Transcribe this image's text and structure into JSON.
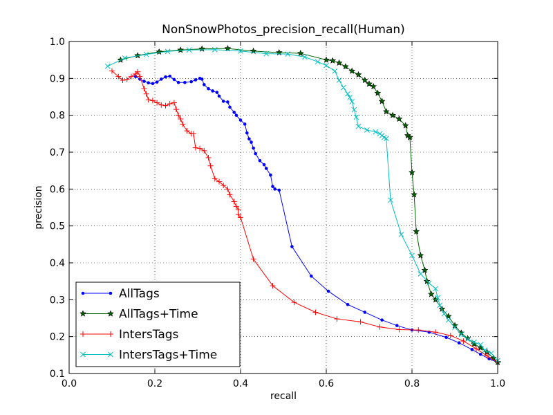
{
  "chart_data": {
    "type": "line",
    "title": "NonSnowPhotos_precision_recall(Human)",
    "xlabel": "recall",
    "ylabel": "precision",
    "xlim": [
      0.0,
      1.0
    ],
    "ylim": [
      0.1,
      1.0
    ],
    "xticks": [
      "0.0",
      "0.2",
      "0.4",
      "0.6",
      "0.8",
      "1.0"
    ],
    "yticks": [
      "0.1",
      "0.2",
      "0.3",
      "0.4",
      "0.5",
      "0.6",
      "0.7",
      "0.8",
      "0.9",
      "1.0"
    ],
    "grid": true,
    "legend_position": "lower-left",
    "series": [
      {
        "name": "AllTags",
        "color": "#0000ff",
        "marker": "dot",
        "points": [
          [
            0.155,
            0.905
          ],
          [
            0.165,
            0.898
          ],
          [
            0.175,
            0.892
          ],
          [
            0.185,
            0.888
          ],
          [
            0.195,
            0.886
          ],
          [
            0.205,
            0.89
          ],
          [
            0.215,
            0.898
          ],
          [
            0.225,
            0.904
          ],
          [
            0.235,
            0.906
          ],
          [
            0.245,
            0.897
          ],
          [
            0.255,
            0.889
          ],
          [
            0.27,
            0.889
          ],
          [
            0.285,
            0.891
          ],
          [
            0.295,
            0.896
          ],
          [
            0.305,
            0.9
          ],
          [
            0.31,
            0.898
          ],
          [
            0.315,
            0.883
          ],
          [
            0.325,
            0.872
          ],
          [
            0.335,
            0.866
          ],
          [
            0.345,
            0.862
          ],
          [
            0.35,
            0.852
          ],
          [
            0.36,
            0.838
          ],
          [
            0.37,
            0.836
          ],
          [
            0.375,
            0.822
          ],
          [
            0.385,
            0.808
          ],
          [
            0.39,
            0.8
          ],
          [
            0.4,
            0.787
          ],
          [
            0.41,
            0.776
          ],
          [
            0.415,
            0.752
          ],
          [
            0.42,
            0.736
          ],
          [
            0.425,
            0.727
          ],
          [
            0.43,
            0.711
          ],
          [
            0.435,
            0.696
          ],
          [
            0.445,
            0.677
          ],
          [
            0.455,
            0.666
          ],
          [
            0.46,
            0.656
          ],
          [
            0.47,
            0.638
          ],
          [
            0.475,
            0.607
          ],
          [
            0.48,
            0.6
          ],
          [
            0.49,
            0.597
          ],
          [
            0.52,
            0.444
          ],
          [
            0.565,
            0.364
          ],
          [
            0.605,
            0.323
          ],
          [
            0.65,
            0.287
          ],
          [
            0.69,
            0.266
          ],
          [
            0.73,
            0.245
          ],
          [
            0.765,
            0.23
          ],
          [
            0.8,
            0.218
          ],
          [
            0.84,
            0.212
          ],
          [
            0.88,
            0.198
          ],
          [
            0.91,
            0.183
          ],
          [
            0.94,
            0.165
          ],
          [
            0.96,
            0.152
          ],
          [
            0.98,
            0.14
          ],
          [
            1.0,
            0.13
          ]
        ]
      },
      {
        "name": "AllTags+Time",
        "color": "#006400",
        "marker": "star",
        "points": [
          [
            0.12,
            0.95
          ],
          [
            0.16,
            0.962
          ],
          [
            0.21,
            0.972
          ],
          [
            0.26,
            0.977
          ],
          [
            0.31,
            0.98
          ],
          [
            0.37,
            0.981
          ],
          [
            0.43,
            0.974
          ],
          [
            0.49,
            0.97
          ],
          [
            0.54,
            0.968
          ],
          [
            0.6,
            0.95
          ],
          [
            0.615,
            0.948
          ],
          [
            0.63,
            0.942
          ],
          [
            0.645,
            0.932
          ],
          [
            0.66,
            0.92
          ],
          [
            0.675,
            0.91
          ],
          [
            0.69,
            0.895
          ],
          [
            0.7,
            0.885
          ],
          [
            0.71,
            0.878
          ],
          [
            0.72,
            0.86
          ],
          [
            0.73,
            0.838
          ],
          [
            0.74,
            0.81
          ],
          [
            0.755,
            0.8
          ],
          [
            0.77,
            0.79
          ],
          [
            0.785,
            0.772
          ],
          [
            0.79,
            0.745
          ],
          [
            0.795,
            0.74
          ],
          [
            0.8,
            0.645
          ],
          [
            0.805,
            0.585
          ],
          [
            0.81,
            0.485
          ],
          [
            0.82,
            0.42
          ],
          [
            0.83,
            0.38
          ],
          [
            0.835,
            0.35
          ],
          [
            0.845,
            0.315
          ],
          [
            0.855,
            0.3
          ],
          [
            0.87,
            0.275
          ],
          [
            0.885,
            0.255
          ],
          [
            0.9,
            0.23
          ],
          [
            0.915,
            0.21
          ],
          [
            0.93,
            0.195
          ],
          [
            0.945,
            0.18
          ],
          [
            0.96,
            0.17
          ],
          [
            0.975,
            0.158
          ],
          [
            0.99,
            0.142
          ],
          [
            1.0,
            0.13
          ]
        ]
      },
      {
        "name": "IntersTags",
        "color": "#ff0000",
        "marker": "plus",
        "points": [
          [
            0.1,
            0.92
          ],
          [
            0.115,
            0.905
          ],
          [
            0.125,
            0.895
          ],
          [
            0.135,
            0.897
          ],
          [
            0.145,
            0.905
          ],
          [
            0.155,
            0.912
          ],
          [
            0.16,
            0.918
          ],
          [
            0.165,
            0.905
          ],
          [
            0.175,
            0.872
          ],
          [
            0.18,
            0.858
          ],
          [
            0.185,
            0.842
          ],
          [
            0.195,
            0.84
          ],
          [
            0.205,
            0.834
          ],
          [
            0.215,
            0.828
          ],
          [
            0.225,
            0.826
          ],
          [
            0.235,
            0.831
          ],
          [
            0.245,
            0.834
          ],
          [
            0.25,
            0.816
          ],
          [
            0.255,
            0.8
          ],
          [
            0.26,
            0.79
          ],
          [
            0.265,
            0.776
          ],
          [
            0.275,
            0.758
          ],
          [
            0.285,
            0.75
          ],
          [
            0.29,
            0.75
          ],
          [
            0.295,
            0.712
          ],
          [
            0.305,
            0.71
          ],
          [
            0.315,
            0.704
          ],
          [
            0.325,
            0.685
          ],
          [
            0.33,
            0.663
          ],
          [
            0.34,
            0.628
          ],
          [
            0.35,
            0.62
          ],
          [
            0.36,
            0.61
          ],
          [
            0.37,
            0.6
          ],
          [
            0.375,
            0.585
          ],
          [
            0.385,
            0.566
          ],
          [
            0.39,
            0.553
          ],
          [
            0.395,
            0.544
          ],
          [
            0.395,
            0.531
          ],
          [
            0.4,
            0.523
          ],
          [
            0.43,
            0.41
          ],
          [
            0.475,
            0.338
          ],
          [
            0.525,
            0.293
          ],
          [
            0.575,
            0.266
          ],
          [
            0.625,
            0.248
          ],
          [
            0.68,
            0.24
          ],
          [
            0.725,
            0.226
          ],
          [
            0.77,
            0.219
          ],
          [
            0.815,
            0.218
          ],
          [
            0.855,
            0.212
          ],
          [
            0.89,
            0.203
          ],
          [
            0.92,
            0.188
          ],
          [
            0.95,
            0.167
          ],
          [
            0.975,
            0.148
          ],
          [
            1.0,
            0.13
          ]
        ]
      },
      {
        "name": "IntersTags+Time",
        "color": "#00bfbf",
        "marker": "x",
        "points": [
          [
            0.09,
            0.933
          ],
          [
            0.13,
            0.955
          ],
          [
            0.18,
            0.965
          ],
          [
            0.23,
            0.973
          ],
          [
            0.28,
            0.977
          ],
          [
            0.34,
            0.978
          ],
          [
            0.4,
            0.974
          ],
          [
            0.46,
            0.967
          ],
          [
            0.51,
            0.966
          ],
          [
            0.55,
            0.958
          ],
          [
            0.58,
            0.945
          ],
          [
            0.6,
            0.935
          ],
          [
            0.62,
            0.92
          ],
          [
            0.63,
            0.895
          ],
          [
            0.64,
            0.875
          ],
          [
            0.65,
            0.858
          ],
          [
            0.655,
            0.848
          ],
          [
            0.66,
            0.837
          ],
          [
            0.665,
            0.815
          ],
          [
            0.67,
            0.795
          ],
          [
            0.675,
            0.77
          ],
          [
            0.695,
            0.76
          ],
          [
            0.715,
            0.755
          ],
          [
            0.725,
            0.75
          ],
          [
            0.73,
            0.745
          ],
          [
            0.735,
            0.74
          ],
          [
            0.74,
            0.737
          ],
          [
            0.75,
            0.57
          ],
          [
            0.775,
            0.477
          ],
          [
            0.8,
            0.42
          ],
          [
            0.82,
            0.37
          ],
          [
            0.84,
            0.345
          ],
          [
            0.855,
            0.33
          ],
          [
            0.86,
            0.305
          ],
          [
            0.865,
            0.285
          ],
          [
            0.875,
            0.262
          ],
          [
            0.885,
            0.245
          ],
          [
            0.9,
            0.225
          ],
          [
            0.915,
            0.206
          ],
          [
            0.93,
            0.193
          ],
          [
            0.945,
            0.185
          ],
          [
            0.96,
            0.178
          ],
          [
            0.97,
            0.163
          ],
          [
            0.985,
            0.155
          ],
          [
            1.0,
            0.135
          ]
        ]
      }
    ]
  }
}
